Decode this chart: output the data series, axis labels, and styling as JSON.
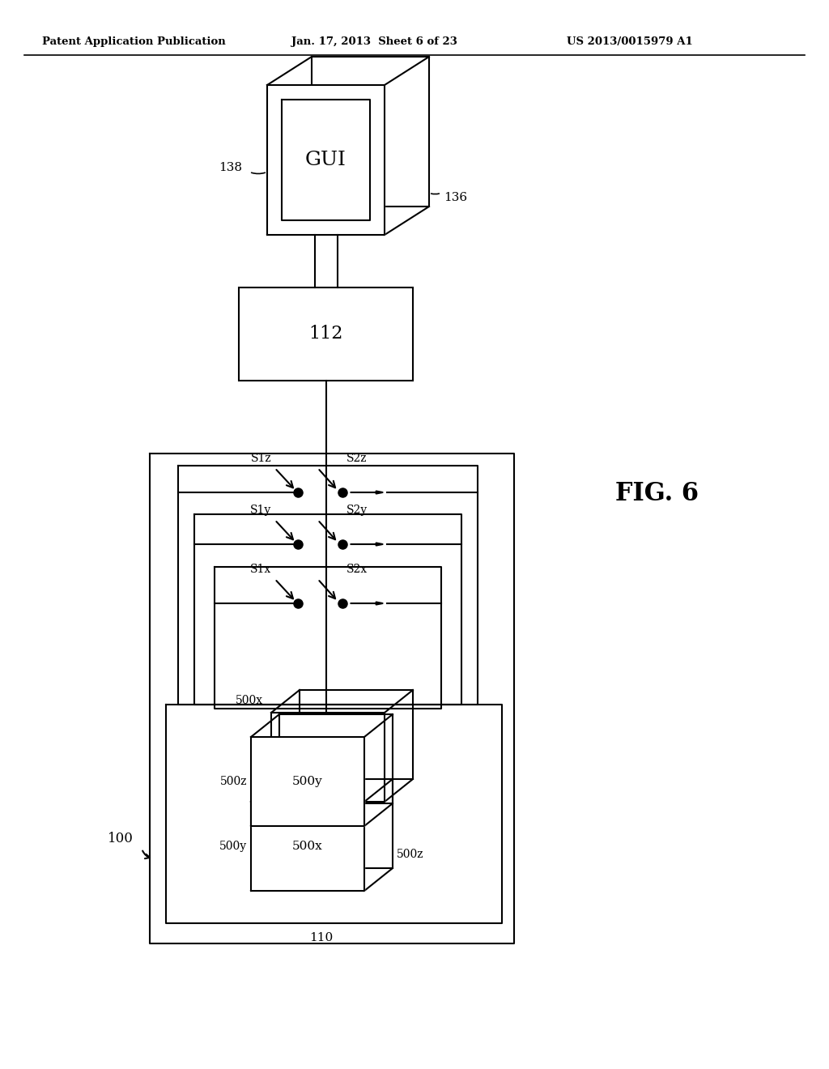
{
  "bg_color": "#ffffff",
  "header_left": "Patent Application Publication",
  "header_center": "Jan. 17, 2013  Sheet 6 of 23",
  "header_right": "US 2013/0015979 A1",
  "fig_label": "FIG. 6",
  "label_100": "100",
  "label_110": "110",
  "label_112": "112",
  "label_136": "136",
  "label_138": "138",
  "label_GUI": "GUI",
  "label_S1z": "S1z",
  "label_S2z": "S2z",
  "label_S1y": "S1y",
  "label_S2y": "S2y",
  "label_S1x": "S1x",
  "label_S2x": "S2x"
}
